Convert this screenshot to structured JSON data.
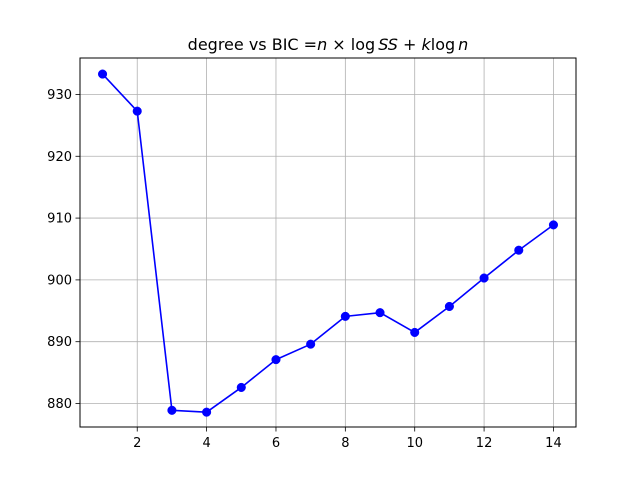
{
  "chart_data": {
    "type": "line",
    "title": {
      "prefix": "degree vs BIC ",
      "equals": "=",
      "n1": "n",
      "times": " × ",
      "log1": "log",
      "ss": "SS",
      "plus": " + ",
      "k": "k",
      "log2": "log",
      "n2": "n"
    },
    "xlabel": "",
    "ylabel": "",
    "xlim": [
      0.35,
      14.65
    ],
    "ylim": [
      876.2,
      935.9
    ],
    "xticks": [
      2,
      4,
      6,
      8,
      10,
      12,
      14
    ],
    "yticks": [
      880,
      890,
      900,
      910,
      920,
      930
    ],
    "grid": true,
    "legend": "none",
    "series": [
      {
        "color": "#0000ff",
        "marker": "circle",
        "x": [
          1,
          2,
          3,
          4,
          5,
          6,
          7,
          8,
          9,
          10,
          11,
          12,
          13,
          14
        ],
        "y": [
          933.3,
          927.3,
          878.9,
          878.6,
          882.6,
          887.1,
          889.6,
          894.1,
          894.7,
          891.5,
          895.7,
          900.3,
          904.8,
          908.9
        ]
      }
    ]
  }
}
